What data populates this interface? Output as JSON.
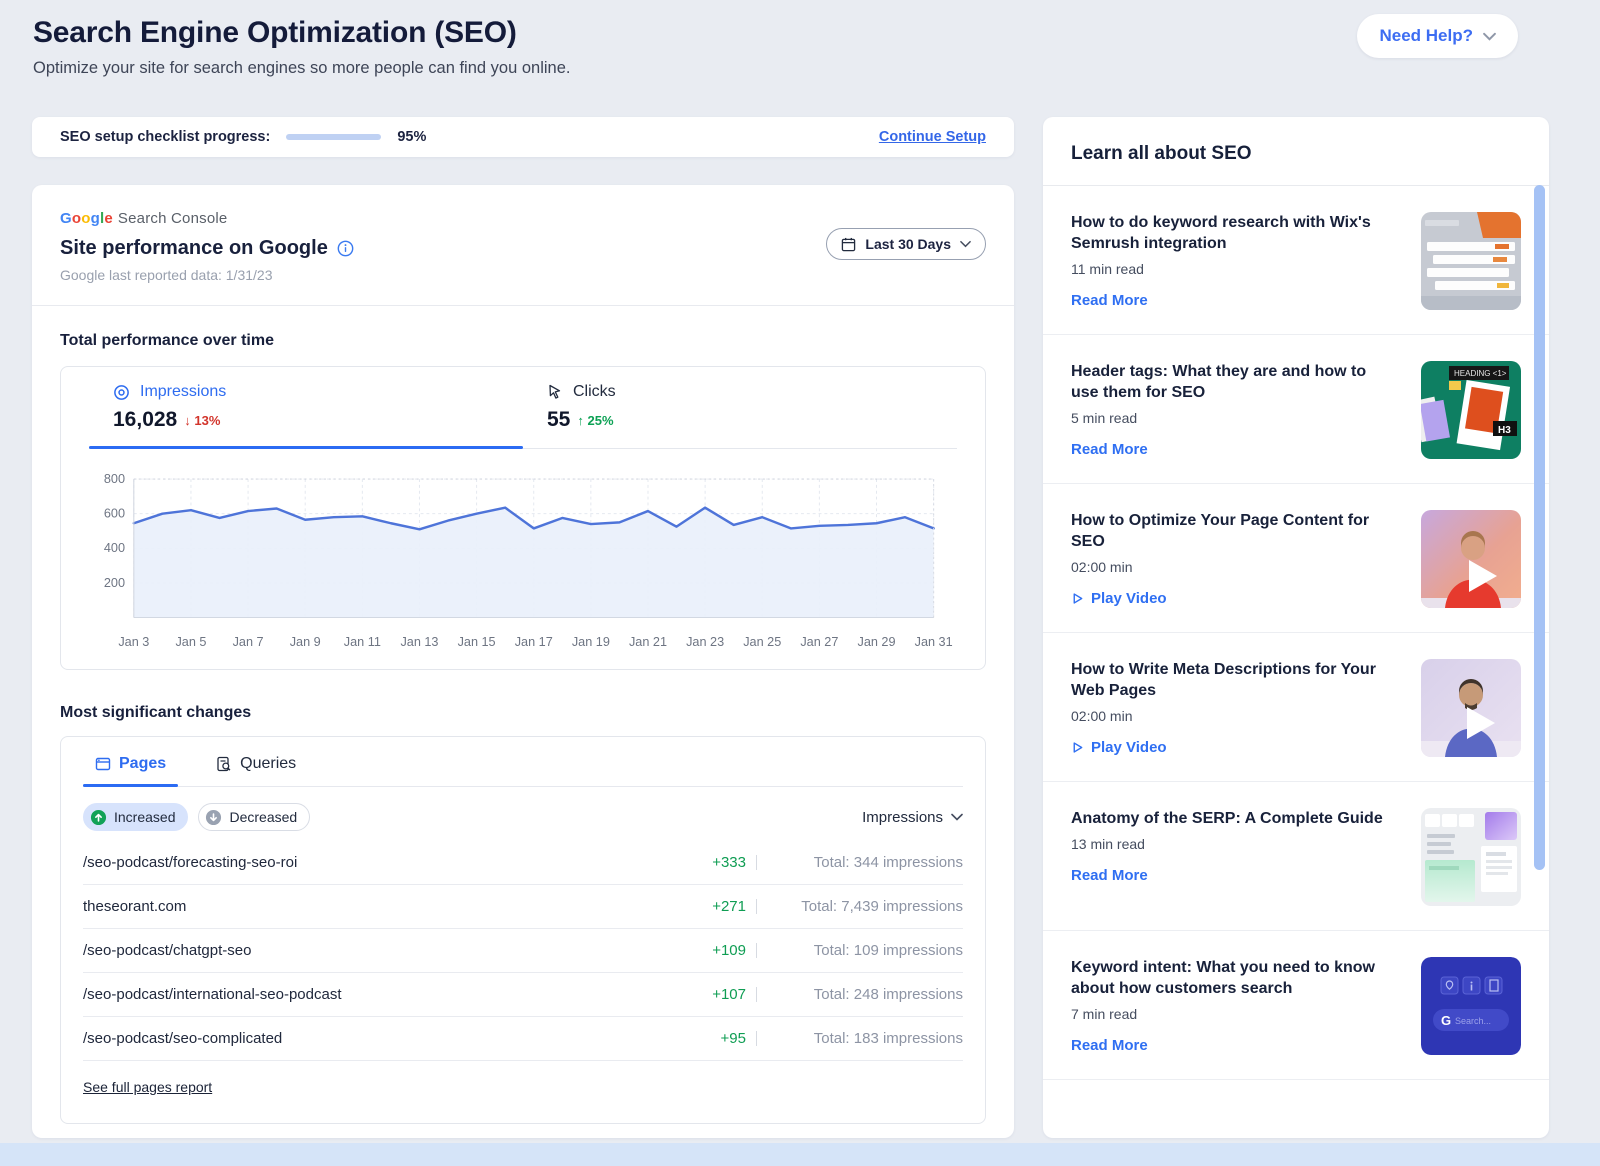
{
  "page": {
    "title": "Search Engine Optimization (SEO)",
    "subtitle": "Optimize your site for search engines so more people can find you online.",
    "need_help_label": "Need Help?"
  },
  "colors": {
    "accent_blue": "#2b6bf3",
    "link_blue": "#2f6ff2",
    "positive_green": "#0f9d53",
    "negative_red": "#d2342b"
  },
  "checklist": {
    "label": "SEO setup checklist progress:",
    "percent": "95%",
    "progress_value": 95,
    "continue_label": "Continue Setup"
  },
  "performance_card": {
    "logo_letters": [
      [
        "G",
        "#4285F4"
      ],
      [
        "o",
        "#EA4335"
      ],
      [
        "o",
        "#FBBC05"
      ],
      [
        "g",
        "#4285F4"
      ],
      [
        "l",
        "#34A853"
      ],
      [
        "e",
        "#EA4335"
      ]
    ],
    "logo_product": "Search Console",
    "title": "Site performance on Google",
    "last_reported": "Google last reported data: 1/31/23",
    "date_range": "Last 30 Days",
    "section_title": "Total performance over time",
    "impressions": {
      "label": "Impressions",
      "value": "16,028",
      "arrow": "↓",
      "delta": "13%"
    },
    "clicks": {
      "label": "Clicks",
      "value": "55",
      "arrow": "↑",
      "delta": "25%"
    }
  },
  "chart_data": {
    "type": "line",
    "title": "Total performance over time",
    "x": [
      "Jan 3",
      "Jan 4",
      "Jan 5",
      "Jan 6",
      "Jan 7",
      "Jan 8",
      "Jan 9",
      "Jan 10",
      "Jan 11",
      "Jan 12",
      "Jan 13",
      "Jan 14",
      "Jan 15",
      "Jan 16",
      "Jan 17",
      "Jan 18",
      "Jan 19",
      "Jan 20",
      "Jan 21",
      "Jan 22",
      "Jan 23",
      "Jan 24",
      "Jan 25",
      "Jan 26",
      "Jan 27",
      "Jan 28",
      "Jan 29",
      "Jan 30",
      "Jan 31"
    ],
    "tick_every": 2,
    "series": [
      {
        "name": "Impressions",
        "values": [
          545,
          600,
          620,
          575,
          615,
          630,
          565,
          580,
          585,
          545,
          510,
          560,
          600,
          635,
          515,
          575,
          540,
          550,
          615,
          525,
          635,
          535,
          580,
          515,
          530,
          535,
          545,
          580,
          515
        ]
      }
    ],
    "ylim": [
      0,
      800
    ],
    "yticks": [
      200,
      400,
      600,
      800
    ],
    "grid": true,
    "legend": "none",
    "line_color": "#4e74d9",
    "fill_color": "#e9effb"
  },
  "changes": {
    "section_title": "Most significant changes",
    "tabs": [
      {
        "label": "Pages"
      },
      {
        "label": "Queries"
      }
    ],
    "filters": [
      {
        "label": "Increased",
        "active": true
      },
      {
        "label": "Decreased",
        "active": false
      }
    ],
    "sort_label": "Impressions",
    "rows": [
      {
        "page": "/seo-podcast/forecasting-seo-roi",
        "change": "+333",
        "total": "Total: 344 impressions"
      },
      {
        "page": "theseorant.com",
        "change": "+271",
        "total": "Total: 7,439 impressions"
      },
      {
        "page": "/seo-podcast/chatgpt-seo",
        "change": "+109",
        "total": "Total: 109 impressions"
      },
      {
        "page": "/seo-podcast/international-seo-podcast",
        "change": "+107",
        "total": "Total: 248 impressions"
      },
      {
        "page": "/seo-podcast/seo-complicated",
        "change": "+95",
        "total": "Total: 183 impressions"
      }
    ],
    "footer_link": "See full pages report"
  },
  "learn": {
    "title": "Learn all about SEO",
    "thumb_texts": {
      "heading_badge": "HEADING <1>",
      "h3_badge": "H3",
      "g_letter": "G",
      "search_placeholder": "Search..."
    },
    "articles": [
      {
        "title": "How to do keyword research with Wix's Semrush integration",
        "meta": "11 min read",
        "action": "Read More",
        "type": "article"
      },
      {
        "title": "Header tags: What they are and how to use them for SEO",
        "meta": "5 min read",
        "action": "Read More",
        "type": "article"
      },
      {
        "title": "How to Optimize Your Page Content for SEO",
        "meta": "02:00 min",
        "action": "Play Video",
        "type": "video"
      },
      {
        "title": "How to Write Meta Descriptions for Your Web Pages",
        "meta": "02:00 min",
        "action": "Play Video",
        "type": "video"
      },
      {
        "title": "Anatomy of the SERP: A Complete Guide",
        "meta": "13 min read",
        "action": "Read More",
        "type": "article"
      },
      {
        "title": "Keyword intent: What you need to know about how customers search",
        "meta": "7 min read",
        "action": "Read More",
        "type": "article"
      }
    ]
  }
}
